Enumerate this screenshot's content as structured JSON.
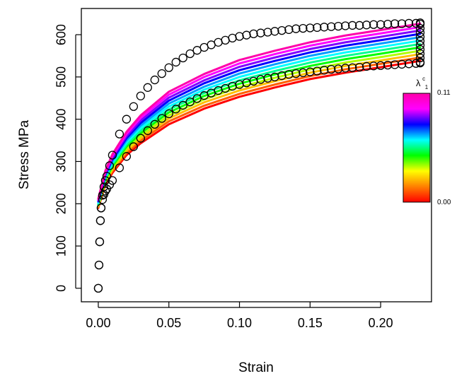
{
  "chart_data": {
    "type": "line",
    "xlabel": "Strain",
    "ylabel": "Stress MPa",
    "xlim": [
      -0.012,
      0.236
    ],
    "ylim": [
      -32,
      662
    ],
    "x_ticks": [
      "0.00",
      "0.05",
      "0.10",
      "0.15",
      "0.20"
    ],
    "y_ticks": [
      "0",
      "100",
      "200",
      "300",
      "400",
      "500",
      "600"
    ],
    "grid": false,
    "legend": {
      "position": "right",
      "label": "λ",
      "label_superscript": "c",
      "label_subscript": "1",
      "max_label": "0.11",
      "min_label": "0.00",
      "gradient_colors": [
        "#ff0000",
        "#ff8000",
        "#ffff00",
        "#00ff00",
        "#00ffff",
        "#0000ff",
        "#ff00ff",
        "#ff00aa"
      ]
    },
    "series": [
      {
        "x": [
          0.0,
          0.005,
          0.01,
          0.02,
          0.03,
          0.05,
          0.075,
          0.1,
          0.125,
          0.15,
          0.175,
          0.2,
          0.228
        ],
        "y": [
          190,
          245,
          273,
          315,
          343,
          388,
          425,
          453,
          475,
          495,
          510,
          523,
          538
        ],
        "color": "#ff0000"
      },
      {
        "x": [
          0.0,
          0.005,
          0.01,
          0.02,
          0.03,
          0.05,
          0.075,
          0.1,
          0.125,
          0.15,
          0.175,
          0.2,
          0.228
        ],
        "y": [
          192,
          248,
          277,
          320,
          349,
          395,
          432,
          460,
          482,
          502,
          518,
          531,
          546
        ],
        "color": "#ff6000"
      },
      {
        "x": [
          0.0,
          0.005,
          0.01,
          0.02,
          0.03,
          0.05,
          0.075,
          0.1,
          0.125,
          0.15,
          0.175,
          0.2,
          0.228
        ],
        "y": [
          194,
          251,
          281,
          325,
          355,
          402,
          440,
          468,
          490,
          510,
          526,
          539,
          554
        ],
        "color": "#ffc000"
      },
      {
        "x": [
          0.0,
          0.005,
          0.01,
          0.02,
          0.03,
          0.05,
          0.075,
          0.1,
          0.125,
          0.15,
          0.175,
          0.2,
          0.228
        ],
        "y": [
          196,
          254,
          285,
          330,
          361,
          409,
          447,
          476,
          498,
          518,
          534,
          547,
          562
        ],
        "color": "#b0ff00"
      },
      {
        "x": [
          0.0,
          0.005,
          0.01,
          0.02,
          0.03,
          0.05,
          0.075,
          0.1,
          0.125,
          0.15,
          0.175,
          0.2,
          0.228
        ],
        "y": [
          198,
          257,
          289,
          335,
          367,
          416,
          455,
          484,
          506,
          526,
          542,
          555,
          570
        ],
        "color": "#00ff00"
      },
      {
        "x": [
          0.0,
          0.005,
          0.01,
          0.02,
          0.03,
          0.05,
          0.075,
          0.1,
          0.125,
          0.15,
          0.175,
          0.2,
          0.228
        ],
        "y": [
          200,
          260,
          293,
          340,
          373,
          423,
          462,
          492,
          514,
          534,
          550,
          563,
          578
        ],
        "color": "#00ff90"
      },
      {
        "x": [
          0.0,
          0.005,
          0.01,
          0.02,
          0.03,
          0.05,
          0.075,
          0.1,
          0.125,
          0.15,
          0.175,
          0.2,
          0.228
        ],
        "y": [
          202,
          263,
          297,
          345,
          379,
          430,
          470,
          500,
          522,
          542,
          558,
          571,
          586
        ],
        "color": "#00ffff"
      },
      {
        "x": [
          0.0,
          0.005,
          0.01,
          0.02,
          0.03,
          0.05,
          0.075,
          0.1,
          0.125,
          0.15,
          0.175,
          0.2,
          0.228
        ],
        "y": [
          204,
          266,
          301,
          350,
          385,
          437,
          477,
          508,
          530,
          550,
          566,
          579,
          594
        ],
        "color": "#00a0ff"
      },
      {
        "x": [
          0.0,
          0.005,
          0.01,
          0.02,
          0.03,
          0.05,
          0.075,
          0.1,
          0.125,
          0.15,
          0.175,
          0.2,
          0.228
        ],
        "y": [
          206,
          269,
          305,
          355,
          391,
          444,
          485,
          516,
          538,
          558,
          574,
          587,
          602
        ],
        "color": "#0000ff"
      },
      {
        "x": [
          0.0,
          0.005,
          0.01,
          0.02,
          0.03,
          0.05,
          0.075,
          0.1,
          0.125,
          0.15,
          0.175,
          0.2,
          0.228
        ],
        "y": [
          208,
          272,
          309,
          360,
          397,
          451,
          492,
          524,
          546,
          566,
          582,
          595,
          610
        ],
        "color": "#8000ff"
      },
      {
        "x": [
          0.0,
          0.005,
          0.01,
          0.02,
          0.03,
          0.05,
          0.075,
          0.1,
          0.125,
          0.15,
          0.175,
          0.2,
          0.228
        ],
        "y": [
          210,
          275,
          313,
          365,
          403,
          458,
          500,
          532,
          554,
          574,
          590,
          603,
          618
        ],
        "color": "#ff00ff"
      },
      {
        "x": [
          0.0,
          0.005,
          0.01,
          0.02,
          0.03,
          0.05,
          0.075,
          0.1,
          0.125,
          0.15,
          0.175,
          0.2,
          0.228
        ],
        "y": [
          212,
          278,
          317,
          370,
          409,
          465,
          507,
          540,
          562,
          582,
          598,
          611,
          626
        ],
        "color": "#ff00aa"
      }
    ],
    "points": {
      "x": [
        0.0,
        0.0005,
        0.001,
        0.0015,
        0.002,
        0.003,
        0.004,
        0.005,
        0.006,
        0.008,
        0.01,
        0.015,
        0.02,
        0.025,
        0.03,
        0.035,
        0.04,
        0.045,
        0.05,
        0.055,
        0.06,
        0.065,
        0.07,
        0.075,
        0.08,
        0.085,
        0.09,
        0.095,
        0.1,
        0.105,
        0.11,
        0.115,
        0.12,
        0.125,
        0.13,
        0.135,
        0.14,
        0.145,
        0.15,
        0.155,
        0.16,
        0.165,
        0.17,
        0.175,
        0.18,
        0.185,
        0.19,
        0.195,
        0.2,
        0.205,
        0.21,
        0.215,
        0.22,
        0.225,
        0.228
      ],
      "y": [
        0,
        55,
        110,
        160,
        190,
        220,
        240,
        255,
        265,
        290,
        315,
        365,
        400,
        430,
        455,
        475,
        493,
        508,
        522,
        535,
        545,
        555,
        563,
        570,
        576,
        582,
        587,
        592,
        596,
        599,
        602,
        604,
        606,
        608,
        610,
        612,
        614,
        615,
        616,
        617,
        618,
        619,
        620,
        621,
        622,
        622,
        623,
        624,
        624,
        625,
        626,
        626,
        627,
        627,
        628
      ],
      "bottom_edge_y": [
        0,
        55,
        110,
        160,
        190,
        210,
        222,
        230,
        235,
        245,
        255,
        285,
        312,
        335,
        355,
        373,
        388,
        402,
        413,
        424,
        433,
        441,
        449,
        456,
        462,
        468,
        473,
        478,
        482,
        486,
        490,
        494,
        497,
        500,
        503,
        506,
        508,
        510,
        512,
        514,
        516,
        518,
        519,
        521,
        522,
        523,
        525,
        526,
        527,
        528,
        529,
        530,
        531,
        532,
        533
      ],
      "column_x": 0.228,
      "column_y": [
        535,
        545,
        555,
        565,
        575,
        585,
        595,
        605,
        615,
        625
      ],
      "color": "#000000"
    }
  }
}
